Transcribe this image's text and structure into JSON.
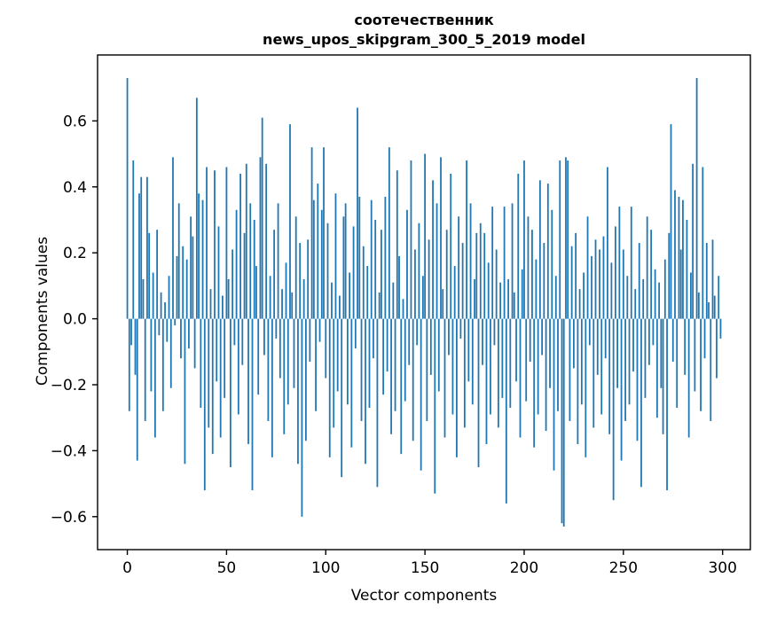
{
  "figure": {
    "title_line1": "соотечественник",
    "title_line2": "news_upos_skipgram_300_5_2019 model",
    "xlabel": "Vector components",
    "ylabel": "Components values"
  },
  "chart_data": {
    "type": "bar",
    "title": "соотечественник\nnews_upos_skipgram_300_5_2019 model",
    "xlabel": "Vector components",
    "ylabel": "Components values",
    "bar_color": "#1f77b4",
    "axis_color": "#000000",
    "background": "#ffffff",
    "grid": false,
    "legend": null,
    "xlim": [
      -15,
      314
    ],
    "ylim": [
      -0.7,
      0.8
    ],
    "xticks": [
      0,
      50,
      100,
      150,
      200,
      250,
      300
    ],
    "yticks": [
      -0.6,
      -0.4,
      -0.2,
      0.0,
      0.2,
      0.4,
      0.6
    ],
    "bar_width": 0.8,
    "values": [
      0.73,
      -0.28,
      -0.08,
      0.48,
      -0.17,
      -0.43,
      0.38,
      0.43,
      0.12,
      -0.31,
      0.43,
      0.26,
      -0.22,
      0.14,
      -0.36,
      0.27,
      -0.05,
      0.08,
      -0.28,
      0.05,
      -0.07,
      0.13,
      -0.21,
      0.49,
      -0.02,
      0.19,
      0.35,
      -0.12,
      0.22,
      -0.44,
      0.18,
      -0.09,
      0.31,
      0.25,
      -0.15,
      0.67,
      0.38,
      -0.27,
      0.36,
      -0.52,
      0.46,
      -0.33,
      0.09,
      -0.41,
      0.45,
      -0.19,
      0.28,
      -0.36,
      0.07,
      -0.24,
      0.46,
      0.12,
      -0.45,
      0.21,
      -0.08,
      0.33,
      -0.29,
      0.44,
      -0.14,
      0.26,
      0.47,
      -0.38,
      0.35,
      -0.52,
      0.3,
      0.16,
      -0.23,
      0.49,
      0.61,
      -0.11,
      0.47,
      -0.31,
      0.13,
      -0.42,
      0.27,
      -0.06,
      0.35,
      -0.18,
      0.09,
      -0.35,
      0.17,
      -0.26,
      0.59,
      0.08,
      -0.21,
      0.31,
      -0.44,
      0.23,
      -0.6,
      0.12,
      -0.37,
      0.24,
      -0.13,
      0.52,
      0.36,
      -0.28,
      0.41,
      -0.07,
      0.33,
      0.52,
      -0.18,
      0.29,
      -0.42,
      0.11,
      -0.33,
      0.38,
      -0.22,
      0.07,
      -0.48,
      0.31,
      0.35,
      -0.26,
      0.14,
      -0.39,
      0.28,
      -0.09,
      0.64,
      0.37,
      -0.31,
      0.22,
      -0.44,
      0.16,
      -0.27,
      0.36,
      -0.12,
      0.3,
      -0.51,
      0.08,
      0.27,
      -0.23,
      0.37,
      -0.16,
      0.52,
      -0.35,
      0.11,
      -0.28,
      0.45,
      0.19,
      -0.41,
      0.06,
      -0.25,
      0.33,
      -0.14,
      0.48,
      -0.37,
      0.21,
      -0.08,
      0.29,
      -0.46,
      0.13,
      0.5,
      -0.31,
      0.24,
      -0.17,
      0.42,
      -0.53,
      0.35,
      -0.22,
      0.49,
      0.09,
      -0.36,
      0.27,
      -0.11,
      0.44,
      -0.29,
      0.16,
      -0.42,
      0.31,
      -0.06,
      0.23,
      -0.33,
      0.48,
      -0.19,
      0.35,
      -0.26,
      0.12,
      0.26,
      -0.45,
      0.29,
      -0.14,
      0.26,
      -0.38,
      0.17,
      -0.29,
      0.34,
      -0.08,
      0.21,
      -0.33,
      0.11,
      -0.24,
      0.34,
      -0.56,
      0.12,
      -0.27,
      0.35,
      0.08,
      -0.19,
      0.44,
      -0.36,
      0.15,
      0.48,
      -0.25,
      0.31,
      -0.13,
      0.27,
      -0.39,
      0.18,
      -0.29,
      0.42,
      -0.11,
      0.23,
      -0.34,
      0.41,
      -0.21,
      0.33,
      -0.46,
      0.13,
      -0.28,
      0.48,
      -0.62,
      -0.63,
      0.49,
      0.48,
      -0.31,
      0.22,
      -0.15,
      0.26,
      -0.38,
      0.09,
      -0.26,
      0.14,
      -0.42,
      0.31,
      -0.08,
      0.19,
      -0.33,
      0.24,
      -0.17,
      0.21,
      -0.29,
      0.25,
      -0.12,
      0.46,
      -0.35,
      0.17,
      -0.55,
      0.28,
      -0.21,
      0.34,
      -0.43,
      0.21,
      -0.31,
      0.13,
      -0.26,
      0.34,
      -0.16,
      0.09,
      -0.37,
      0.23,
      -0.51,
      0.12,
      -0.24,
      0.31,
      -0.14,
      0.27,
      -0.08,
      0.15,
      -0.3,
      0.11,
      -0.21,
      -0.35,
      0.18,
      -0.52,
      0.26,
      0.59,
      -0.13,
      0.39,
      -0.27,
      0.37,
      0.21,
      0.36,
      -0.17,
      0.3,
      -0.36,
      0.14,
      0.47,
      -0.22,
      0.73,
      0.08,
      -0.28,
      0.46,
      -0.12,
      0.23,
      0.05,
      -0.31,
      0.24,
      0.07,
      -0.18,
      0.13,
      -0.06
    ]
  }
}
